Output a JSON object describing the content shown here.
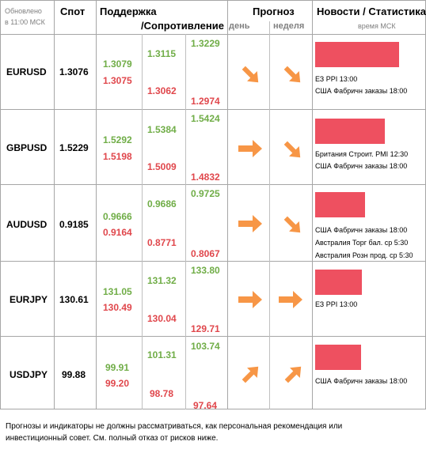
{
  "header": {
    "updated_line1": "Обновлено",
    "updated_line2": "в 11:00 МСК",
    "spot": "Спот",
    "support": "Поддержка",
    "resistance": "/Сопротивление",
    "forecast": "Прогноз",
    "day": "день",
    "week": "неделя",
    "news": "Новости / Статистика",
    "time_msk": "время МСК"
  },
  "colors": {
    "support_green": "#70ad47",
    "resistance_red": "#e0474c",
    "news_bar": "#ee5060",
    "arrow": "#f79646"
  },
  "rows": [
    {
      "symbol": "EURUSD",
      "spot": "1.3076",
      "c1_green": "1.3079",
      "c1_red": "1.3075",
      "c2_green": "1.3115",
      "c2_red": "1.3062",
      "c3_green": "1.3229",
      "c3_red": "1.2974",
      "day_arrow": "arrow-down-right-icon",
      "week_arrow": "arrow-down-right-icon",
      "news": [
        "ЕЗ PPI 13:00",
        "США Фабричн заказы 18:00"
      ]
    },
    {
      "symbol": "GBPUSD",
      "spot": "1.5229",
      "c1_green": "1.5292",
      "c1_red": "1.5198",
      "c2_green": "1.5384",
      "c2_red": "1.5009",
      "c3_green": "1.5424",
      "c3_red": "1.4832",
      "day_arrow": "arrow-right-icon",
      "week_arrow": "arrow-down-right-icon",
      "news": [
        "Британия Строит. PMI 12:30",
        "США Фабричн заказы 18:00"
      ]
    },
    {
      "symbol": "AUDUSD",
      "spot": "0.9185",
      "c1_green": "0.9666",
      "c1_red": "0.9164",
      "c2_green": "0.9686",
      "c2_red": "0.8771",
      "c3_green": "0.9725",
      "c3_red": "0.8067",
      "day_arrow": "arrow-right-icon",
      "week_arrow": "arrow-down-right-icon",
      "news": [
        "США Фабричн заказы 18:00",
        "Австралия Торг бал. ср 5:30",
        "Австралия Розн прод. ср 5:30"
      ]
    },
    {
      "symbol": "EURJPY",
      "spot": "130.61",
      "c1_green": "131.05",
      "c1_red": "130.49",
      "c2_green": "131.32",
      "c2_red": "130.04",
      "c3_green": "133.80",
      "c3_red": "129.71",
      "day_arrow": "arrow-right-icon",
      "week_arrow": "arrow-right-icon",
      "news": [
        "ЕЗ PPI 13:00"
      ]
    },
    {
      "symbol": "USDJPY",
      "spot": "99.88",
      "c1_green": "99.91",
      "c1_red": "99.20",
      "c2_green": "101.31",
      "c2_red": "98.78",
      "c3_green": "103.74",
      "c3_red": "97.64",
      "day_arrow": "arrow-up-right-icon",
      "week_arrow": "arrow-up-right-icon",
      "news": [
        "США Фабричн заказы 18:00"
      ]
    }
  ],
  "footer": {
    "line1": "Прогнозы и индикаторы не должны рассматриваться, как персональная рекомендация или",
    "line2": "инвестиционный совет. См. полный отказ от рисков ниже."
  }
}
